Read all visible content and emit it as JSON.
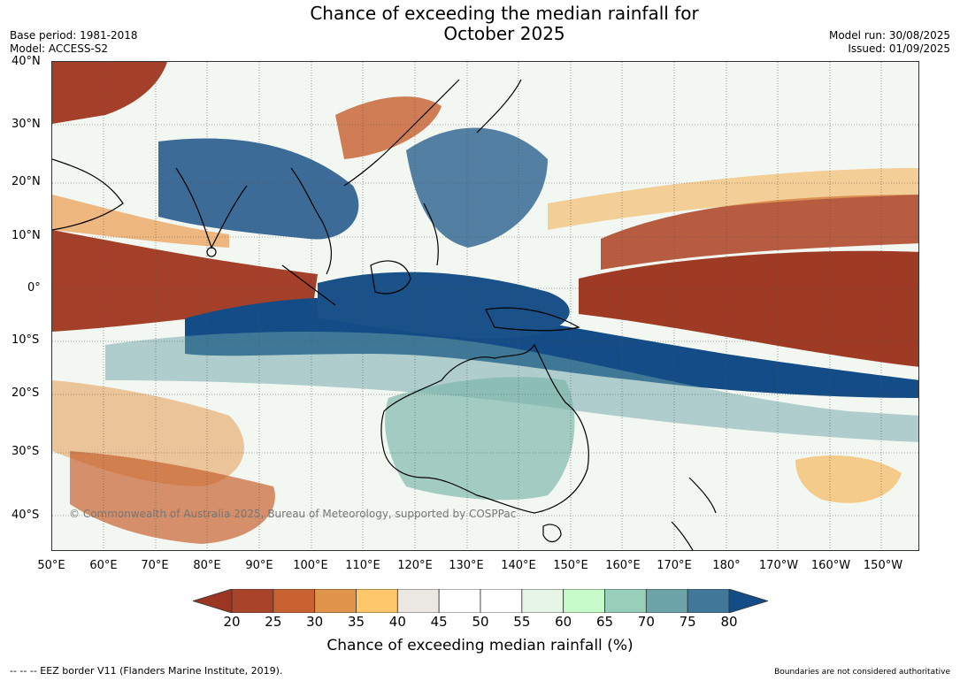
{
  "title": {
    "line1": "Chance of exceeding the median rainfall for",
    "line2": "October 2025"
  },
  "meta": {
    "base_period": "Base period: 1981-2018",
    "model": "Model: ACCESS-S2",
    "model_run": "Model run: 30/08/2025",
    "issued": "Issued: 01/09/2025"
  },
  "map": {
    "lat_labels": [
      "40°N",
      "30°N",
      "20°N",
      "10°N",
      "0°",
      "10°S",
      "20°S",
      "30°S",
      "40°S"
    ],
    "lon_labels": [
      "50°E",
      "60°E",
      "70°E",
      "80°E",
      "90°E",
      "100°E",
      "110°E",
      "120°E",
      "130°E",
      "140°E",
      "150°E",
      "160°E",
      "170°E",
      "180°",
      "170°W",
      "160°W",
      "150°W"
    ],
    "copyright": "© Commonwealth of Australia 2025, Bureau of Meteorology, supported by COSPPac"
  },
  "colorbar": {
    "ticks": [
      "20",
      "25",
      "30",
      "35",
      "40",
      "45",
      "50",
      "55",
      "60",
      "65",
      "70",
      "75",
      "80"
    ],
    "colors": [
      "#a9432a",
      "#c86231",
      "#e0944a",
      "#fec76a",
      "#ebe8e3",
      "#ffffff",
      "#ffffff",
      "#e7f5e6",
      "#c7fbc9",
      "#98cfbb",
      "#6ba3a8",
      "#417799"
    ],
    "low_color": "#9b3524",
    "high_color": "#134c86",
    "title": "Chance of exceeding median rainfall (%)"
  },
  "footer": {
    "eez": "--  --  -- EEZ border V11 (Flanders Marine Institute, 2019).",
    "disclaimer": "Boundaries are not considered authoritative"
  }
}
